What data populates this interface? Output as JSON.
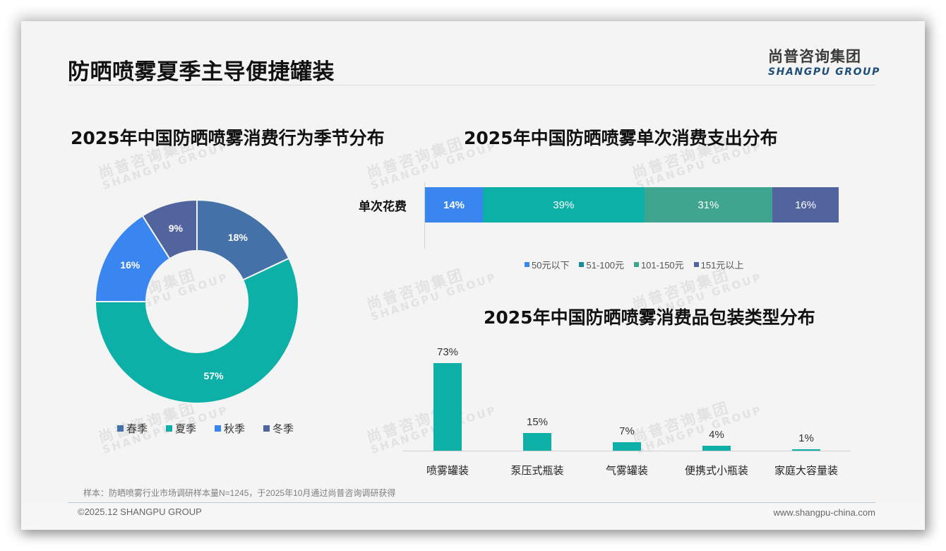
{
  "header": {
    "title": "防晒喷雾夏季主导便捷罐装",
    "logo_cn": "尚普咨询集团",
    "logo_en": "SHANGPU GROUP"
  },
  "watermark": {
    "cn": "尚普咨询集团",
    "en": "SHANGPU GROUP"
  },
  "colors": {
    "spring": "#4472a8",
    "summer": "#0db0a6",
    "autumn": "#3a86f0",
    "winter": "#52649e",
    "seg_50_below": "#3a86f0",
    "seg_51_100": "#0db0a6",
    "seg_101_150": "#3fa58f",
    "seg_151_above": "#52649e",
    "column": "#0db0a6"
  },
  "pie": {
    "title": "2025年中国防晒喷雾消费行为季节分布",
    "slices": [
      {
        "label": "春季",
        "value": 18,
        "display": "18%"
      },
      {
        "label": "夏季",
        "value": 57,
        "display": "57%"
      },
      {
        "label": "秋季",
        "value": 16,
        "display": "16%"
      },
      {
        "label": "冬季",
        "value": 9,
        "display": "9%"
      }
    ]
  },
  "stacked": {
    "title": "2025年中国防晒喷雾单次消费支出分布",
    "category": "单次花费",
    "segments": [
      {
        "label": "50元以下",
        "value": 14,
        "display": "14%"
      },
      {
        "label": "51-100元",
        "value": 39,
        "display": "39%"
      },
      {
        "label": "101-150元",
        "value": 31,
        "display": "31%"
      },
      {
        "label": "151元以上",
        "value": 16,
        "display": "16%"
      }
    ]
  },
  "columns": {
    "title": "2025年中国防晒喷雾消费品包装类型分布",
    "items": [
      {
        "label": "喷雾罐装",
        "value": 73,
        "display": "73%"
      },
      {
        "label": "泵压式瓶装",
        "value": 15,
        "display": "15%"
      },
      {
        "label": "气雾罐装",
        "value": 7,
        "display": "7%"
      },
      {
        "label": "便携式小瓶装",
        "value": 4,
        "display": "4%"
      },
      {
        "label": "家庭大容量装",
        "value": 1,
        "display": "1%"
      }
    ]
  },
  "footer": {
    "footnote": "样本：防晒喷雾行业市场调研样本量N=1245，于2025年10月通过尚普咨询调研获得",
    "copyright": "©2025.12 SHANGPU GROUP",
    "website": "www.shangpu-china.com"
  },
  "chart_data": [
    {
      "type": "pie",
      "title": "2025年中国防晒喷雾消费行为季节分布",
      "categories": [
        "春季",
        "夏季",
        "秋季",
        "冬季"
      ],
      "values": [
        18,
        57,
        16,
        9
      ],
      "unit": "%",
      "donut": true,
      "legend_position": "bottom"
    },
    {
      "type": "bar",
      "orientation": "horizontal",
      "stacked": true,
      "title": "2025年中国防晒喷雾单次消费支出分布",
      "categories": [
        "单次花费"
      ],
      "series": [
        {
          "name": "50元以下",
          "values": [
            14
          ]
        },
        {
          "name": "51-100元",
          "values": [
            39
          ]
        },
        {
          "name": "101-150元",
          "values": [
            31
          ]
        },
        {
          "name": "151元以上",
          "values": [
            16
          ]
        }
      ],
      "unit": "%",
      "legend_position": "bottom"
    },
    {
      "type": "bar",
      "title": "2025年中国防晒喷雾消费品包装类型分布",
      "categories": [
        "喷雾罐装",
        "泵压式瓶装",
        "气雾罐装",
        "便携式小瓶装",
        "家庭大容量装"
      ],
      "values": [
        73,
        15,
        7,
        4,
        1
      ],
      "unit": "%",
      "xlabel": "",
      "ylabel": "",
      "grid": false
    }
  ]
}
